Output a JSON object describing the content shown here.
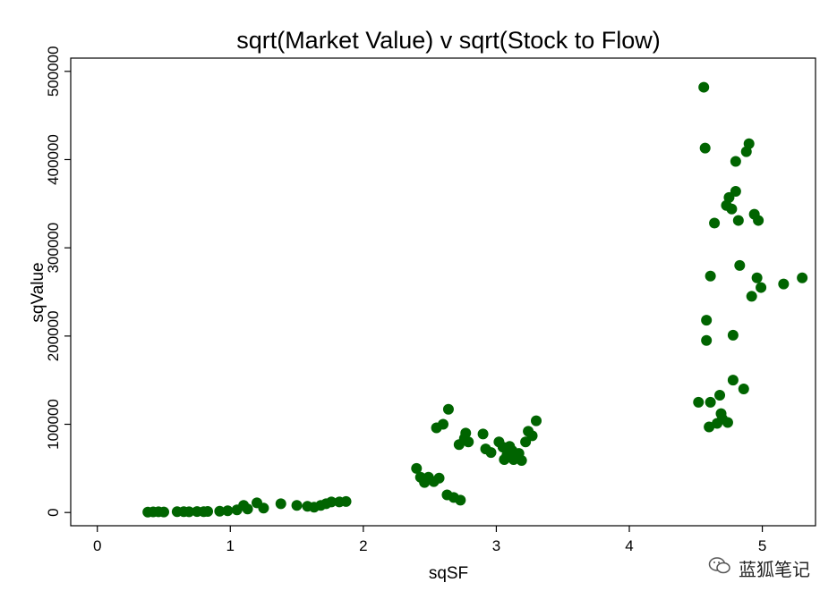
{
  "chart_data": {
    "type": "scatter",
    "title": "sqrt(Market Value) v sqrt(Stock to Flow)",
    "xlabel": "sqSF",
    "ylabel": "sqValue",
    "xlim": [
      -0.2,
      5.4
    ],
    "ylim": [
      -15000,
      515000
    ],
    "xticks": [
      0,
      1,
      2,
      3,
      4,
      5
    ],
    "yticks": [
      0,
      100000,
      200000,
      300000,
      400000,
      500000
    ],
    "grid": false,
    "marker_color": "#006400",
    "points": [
      [
        0.38,
        500
      ],
      [
        0.42,
        700
      ],
      [
        0.46,
        800
      ],
      [
        0.5,
        600
      ],
      [
        0.6,
        900
      ],
      [
        0.65,
        1000
      ],
      [
        0.69,
        800
      ],
      [
        0.75,
        1100
      ],
      [
        0.8,
        900
      ],
      [
        0.83,
        1200
      ],
      [
        0.92,
        1500
      ],
      [
        0.98,
        2000
      ],
      [
        1.05,
        3000
      ],
      [
        1.1,
        8000
      ],
      [
        1.13,
        4000
      ],
      [
        1.2,
        11000
      ],
      [
        1.25,
        5000
      ],
      [
        1.38,
        10000
      ],
      [
        1.5,
        8000
      ],
      [
        1.58,
        7000
      ],
      [
        1.63,
        6000
      ],
      [
        1.68,
        8000
      ],
      [
        1.72,
        10000
      ],
      [
        1.76,
        12000
      ],
      [
        1.82,
        12000
      ],
      [
        1.87,
        12500
      ],
      [
        2.4,
        50000
      ],
      [
        2.43,
        40000
      ],
      [
        2.46,
        34000
      ],
      [
        2.49,
        40000
      ],
      [
        2.53,
        35000
      ],
      [
        2.57,
        39000
      ],
      [
        2.55,
        96000
      ],
      [
        2.6,
        100000
      ],
      [
        2.64,
        117000
      ],
      [
        2.63,
        20000
      ],
      [
        2.68,
        17000
      ],
      [
        2.73,
        14000
      ],
      [
        2.72,
        77000
      ],
      [
        2.76,
        84000
      ],
      [
        2.77,
        90000
      ],
      [
        2.79,
        80000
      ],
      [
        2.9,
        89000
      ],
      [
        2.92,
        72000
      ],
      [
        2.96,
        68000
      ],
      [
        3.02,
        80000
      ],
      [
        3.05,
        74000
      ],
      [
        3.06,
        60000
      ],
      [
        3.08,
        65000
      ],
      [
        3.1,
        75000
      ],
      [
        3.12,
        70000
      ],
      [
        3.14,
        62000
      ],
      [
        3.13,
        60000
      ],
      [
        3.17,
        67000
      ],
      [
        3.19,
        59000
      ],
      [
        3.22,
        80000
      ],
      [
        3.24,
        92000
      ],
      [
        3.27,
        87000
      ],
      [
        3.3,
        104000
      ],
      [
        4.52,
        125000
      ],
      [
        4.56,
        482000
      ],
      [
        4.57,
        413000
      ],
      [
        4.58,
        218000
      ],
      [
        4.58,
        195000
      ],
      [
        4.6,
        97000
      ],
      [
        4.61,
        125000
      ],
      [
        4.61,
        268000
      ],
      [
        4.64,
        328000
      ],
      [
        4.66,
        101000
      ],
      [
        4.68,
        133000
      ],
      [
        4.69,
        112000
      ],
      [
        4.7,
        106000
      ],
      [
        4.73,
        348000
      ],
      [
        4.74,
        102000
      ],
      [
        4.75,
        357000
      ],
      [
        4.77,
        344000
      ],
      [
        4.78,
        150000
      ],
      [
        4.78,
        201000
      ],
      [
        4.8,
        398000
      ],
      [
        4.8,
        364000
      ],
      [
        4.82,
        331000
      ],
      [
        4.83,
        280000
      ],
      [
        4.86,
        140000
      ],
      [
        4.88,
        409000
      ],
      [
        4.9,
        418000
      ],
      [
        4.92,
        245000
      ],
      [
        4.94,
        338000
      ],
      [
        4.96,
        266000
      ],
      [
        4.97,
        331000
      ],
      [
        4.99,
        255000
      ],
      [
        5.16,
        259000
      ],
      [
        5.3,
        266000
      ]
    ]
  },
  "watermark": {
    "text": "蓝狐笔记",
    "icon": "wechat-icon"
  }
}
